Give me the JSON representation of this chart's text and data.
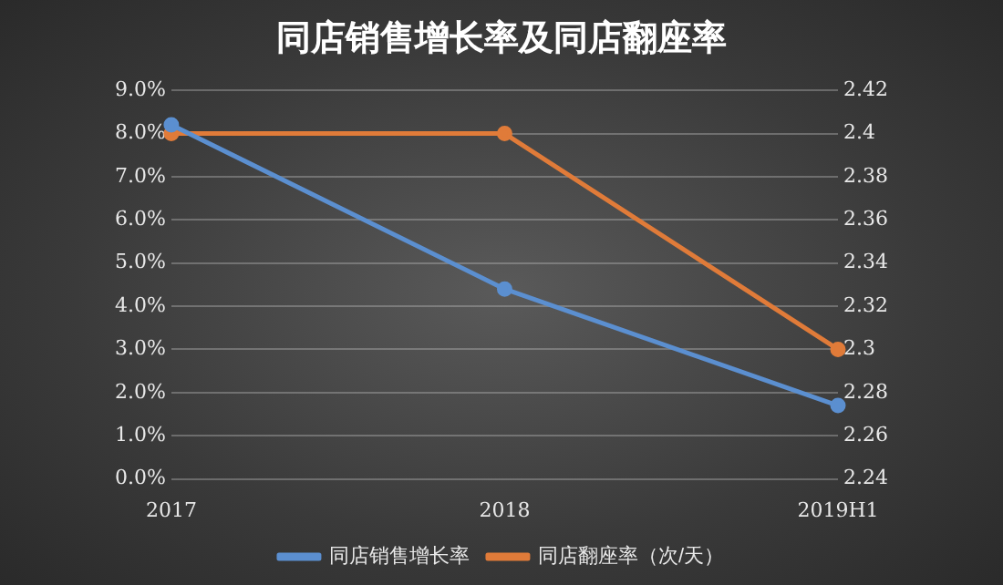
{
  "chart_data": {
    "type": "line",
    "title": "同店销售增长率及同店翻座率",
    "categories": [
      "2017",
      "2018",
      "2019H1"
    ],
    "series": [
      {
        "name": "同店销售增长率",
        "color": "#5b8fd0",
        "values": [
          8.2,
          4.4,
          1.7
        ]
      },
      {
        "name": "同店翻座率（次/天）",
        "color": "#e07b39",
        "values": [
          2.4,
          2.4,
          2.3
        ],
        "axis": "y2"
      }
    ],
    "ylim": [
      0,
      9
    ],
    "yticks": [
      {
        "value": 0,
        "label": "0.0%"
      },
      {
        "value": 1,
        "label": "1.0%"
      },
      {
        "value": 2,
        "label": "2.0%"
      },
      {
        "value": 3,
        "label": "3.0%"
      },
      {
        "value": 4,
        "label": "4.0%"
      },
      {
        "value": 5,
        "label": "5.0%"
      },
      {
        "value": 6,
        "label": "6.0%"
      },
      {
        "value": 7,
        "label": "7.0%"
      },
      {
        "value": 8,
        "label": "8.0%"
      },
      {
        "value": 9,
        "label": "9.0%"
      }
    ],
    "y2lim": [
      2.24,
      2.42
    ],
    "y2ticks": [
      2.24,
      2.26,
      2.28,
      2.3,
      2.32,
      2.34,
      2.36,
      2.38,
      2.4,
      2.42
    ],
    "grid": "y",
    "legend": "bottom",
    "marker": "circle",
    "line_style": "solid"
  }
}
